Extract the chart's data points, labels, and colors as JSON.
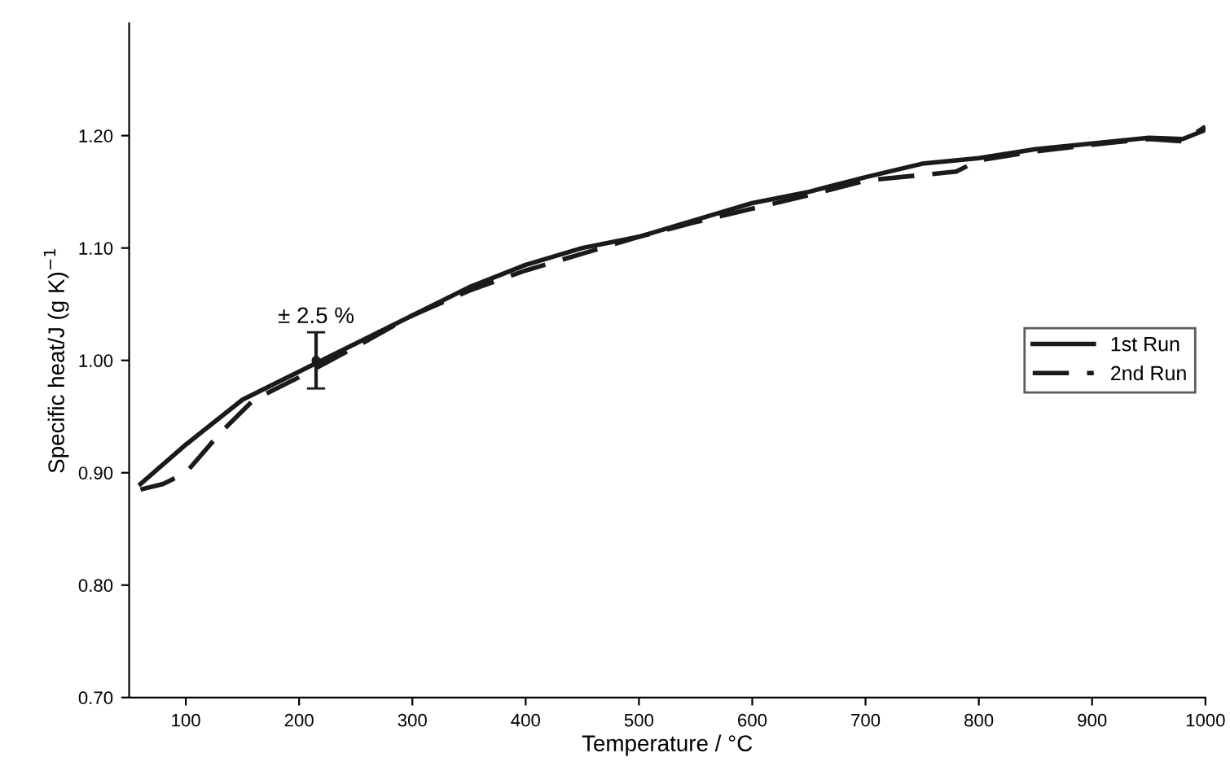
{
  "chart_data": {
    "type": "line",
    "xlabel": "Temperature / °C",
    "ylabel": "Specific heat/J (g K)$^{−1}$",
    "xlim": [
      50,
      1000
    ],
    "ylim": [
      0.7,
      1.3
    ],
    "xticks": [
      100,
      200,
      300,
      400,
      500,
      600,
      700,
      800,
      900,
      1000
    ],
    "yticks": [
      {
        "value": 0.7,
        "label": "0.70"
      },
      {
        "value": 0.8,
        "label": "0.80"
      },
      {
        "value": 0.9,
        "label": "0.90"
      },
      {
        "value": 1.0,
        "label": "1.00"
      },
      {
        "value": 1.1,
        "label": "1.10"
      },
      {
        "value": 1.2,
        "label": "1.20"
      }
    ],
    "grid": false,
    "legend": "right",
    "series": [
      {
        "name": "1st Run",
        "color": "#1a1a1a",
        "line_style": "solid",
        "marker": "none",
        "x": [
          60,
          100,
          150,
          200,
          250,
          300,
          350,
          400,
          450,
          500,
          550,
          600,
          650,
          700,
          750,
          800,
          850,
          900,
          950,
          980,
          1000
        ],
        "values": [
          0.89,
          0.925,
          0.965,
          0.99,
          1.015,
          1.04,
          1.065,
          1.085,
          1.1,
          1.11,
          1.125,
          1.14,
          1.15,
          1.163,
          1.175,
          1.18,
          1.188,
          1.193,
          1.198,
          1.197,
          1.205
        ]
      },
      {
        "name": "2nd Run",
        "color": "#1a1a1a",
        "line_style": "dashed",
        "marker": "none",
        "x": [
          60,
          80,
          100,
          130,
          160,
          200,
          250,
          300,
          350,
          400,
          450,
          500,
          550,
          600,
          650,
          700,
          750,
          780,
          800,
          850,
          900,
          950,
          980,
          1000
        ],
        "values": [
          0.885,
          0.89,
          0.9,
          0.935,
          0.965,
          0.985,
          1.012,
          1.04,
          1.062,
          1.08,
          1.095,
          1.11,
          1.123,
          1.135,
          1.147,
          1.16,
          1.165,
          1.168,
          1.178,
          1.186,
          1.192,
          1.197,
          1.195,
          1.208
        ]
      },
      {
        "type": "scatter",
        "color": "#1a1a1a",
        "marker": "circle",
        "x": [
          215
        ],
        "values": [
          1.0
        ],
        "errors": [
          0.025
        ]
      }
    ],
    "annotations": [
      {
        "text": "± 2.5 %",
        "x": 215,
        "y": 1.025
      }
    ]
  }
}
